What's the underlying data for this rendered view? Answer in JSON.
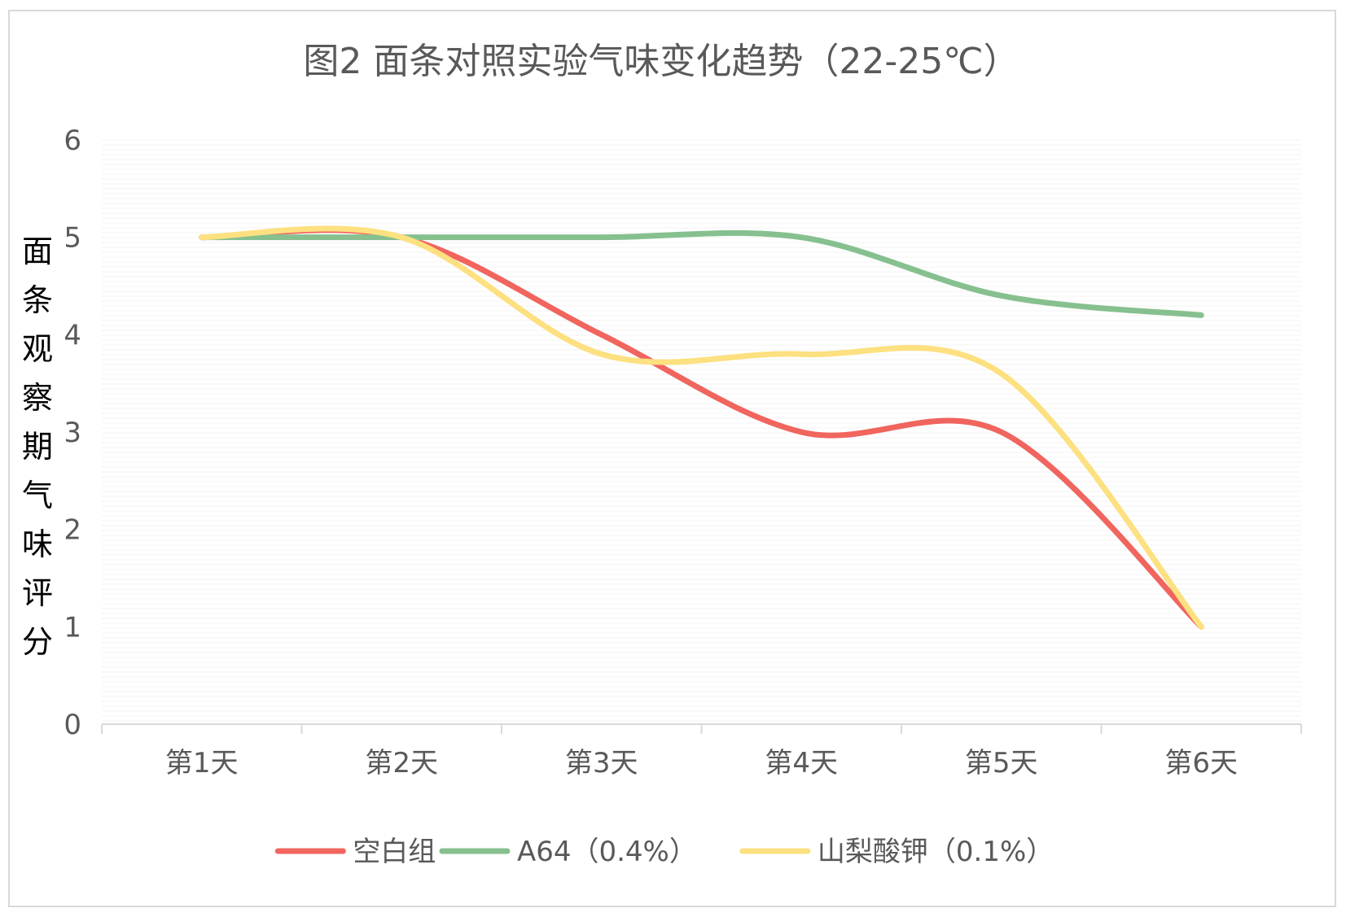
{
  "chart_data": {
    "type": "line",
    "title": "图2  面条对照实验气味变化趋势（22-25℃）",
    "ylabel": "面条观察期气味评分",
    "xlabel": "",
    "categories": [
      "第1天",
      "第2天",
      "第3天",
      "第4天",
      "第5天",
      "第6天"
    ],
    "ylim": [
      0,
      6
    ],
    "yticks": [
      0,
      1,
      2,
      3,
      4,
      5,
      6
    ],
    "grid": true,
    "smooth": true,
    "legend_position": "bottom",
    "series": [
      {
        "name": "空白组",
        "values": [
          5,
          5,
          4,
          3,
          3,
          1
        ],
        "color": "#f0655e"
      },
      {
        "name": "A64（0.4%）",
        "values": [
          5,
          5,
          5,
          5,
          4.4,
          4.2
        ],
        "color": "#86c08f"
      },
      {
        "name": "山梨酸钾（0.1%）",
        "values": [
          5,
          5,
          3.8,
          3.8,
          3.6,
          1
        ],
        "color": "#fde07f"
      }
    ]
  }
}
